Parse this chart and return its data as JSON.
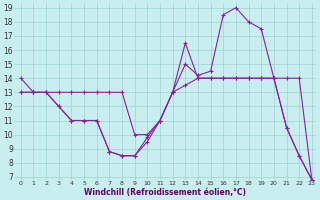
{
  "xlabel": "Windchill (Refroidissement éolien,°C)",
  "bg_color": "#c8eef0",
  "grid_color": "#9dd4cc",
  "line_color": "#882299",
  "xmin": 0,
  "xmax": 23,
  "ymin": 7,
  "ymax": 19,
  "line1_x": [
    0,
    1,
    2,
    3,
    4,
    5,
    6,
    7,
    8,
    9,
    10,
    11,
    12,
    13,
    14,
    15,
    16,
    17,
    18,
    19,
    20,
    21,
    22,
    23
  ],
  "line1_y": [
    14,
    13,
    13,
    12,
    11,
    11,
    11,
    8.8,
    8.5,
    8.5,
    9.8,
    11,
    13,
    16.5,
    14,
    14,
    14,
    14,
    14,
    14,
    14,
    10.5,
    8.5,
    6.8
  ],
  "line2_x": [
    0,
    1,
    2,
    3,
    4,
    5,
    6,
    7,
    8,
    9,
    10,
    11,
    12,
    13,
    14,
    15,
    16,
    17,
    18,
    19,
    20,
    21,
    22,
    23
  ],
  "line2_y": [
    13,
    13,
    13,
    12,
    11,
    11,
    11,
    8.8,
    8.5,
    8.5,
    9.5,
    11,
    13,
    15,
    14.2,
    14.5,
    18.5,
    19,
    18,
    17.5,
    14,
    10.5,
    8.5,
    6.8
  ],
  "line3_x": [
    0,
    1,
    2,
    3,
    4,
    5,
    6,
    7,
    8,
    9,
    10,
    11,
    12,
    13,
    14,
    15,
    16,
    17,
    18,
    19,
    20,
    21,
    22,
    23
  ],
  "line3_y": [
    13,
    13,
    13,
    13,
    13,
    13,
    13,
    13,
    13,
    10,
    10,
    11,
    13,
    13.5,
    14,
    14,
    14,
    14,
    14,
    14,
    14,
    14,
    14,
    6.8
  ]
}
